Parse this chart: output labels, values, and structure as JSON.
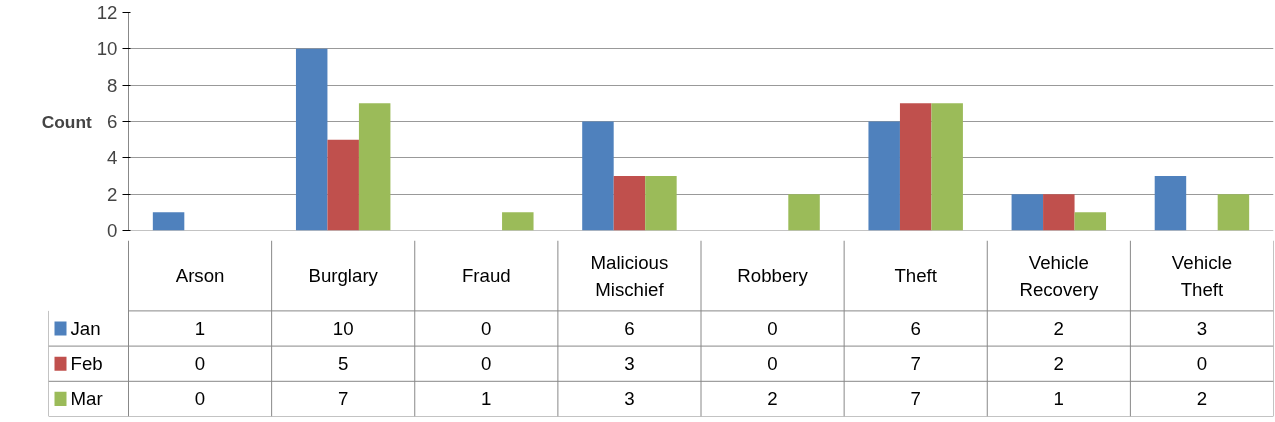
{
  "chart_data": {
    "type": "bar",
    "ylabel": "Count",
    "categories": [
      "Arson",
      "Burglary",
      "Fraud",
      "Malicious Mischief",
      "Robbery",
      "Theft",
      "Vehicle Recovery",
      "Vehicle Theft"
    ],
    "series": [
      {
        "name": "Jan",
        "color": "#4f81bd",
        "values": [
          1,
          10,
          0,
          6,
          0,
          6,
          2,
          3
        ]
      },
      {
        "name": "Feb",
        "color": "#c0504d",
        "values": [
          0,
          5,
          0,
          3,
          0,
          7,
          2,
          0
        ]
      },
      {
        "name": "Mar",
        "color": "#9bbb59",
        "values": [
          0,
          7,
          1,
          3,
          2,
          7,
          1,
          2
        ]
      }
    ],
    "ylim": [
      0,
      12
    ],
    "yticks": [
      0,
      2,
      4,
      6,
      8,
      10,
      12
    ],
    "grid": "y",
    "legend": "bottom",
    "data_labels": true
  }
}
